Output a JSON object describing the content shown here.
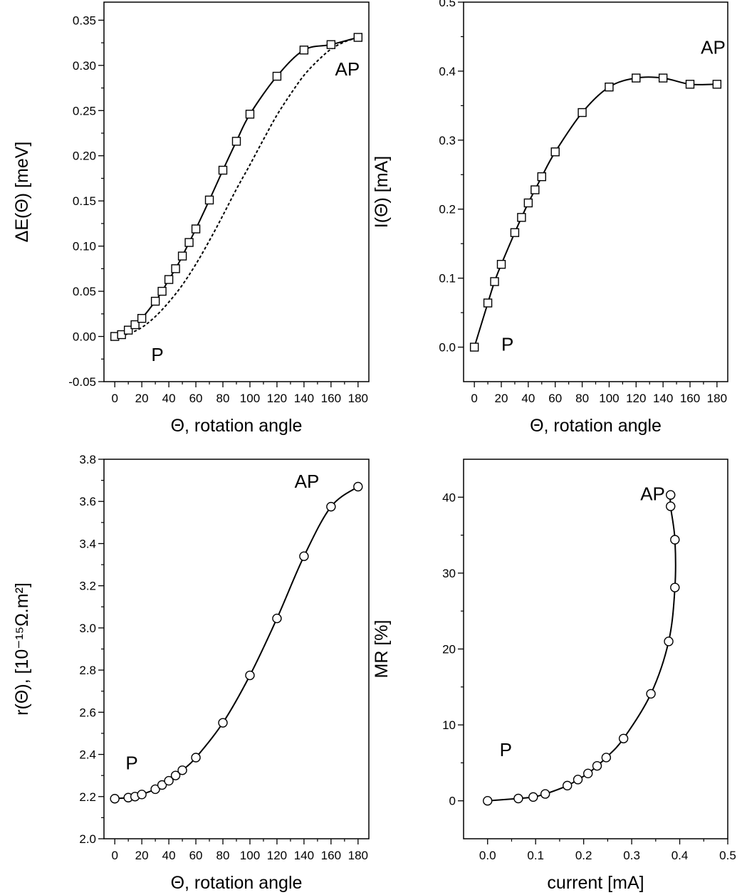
{
  "chart_data": [
    {
      "id": "energy",
      "type": "line",
      "xlabel": "Θ,  rotation angle",
      "ylabel": "ΔE(Θ)  [meV]",
      "xlim": [
        -8,
        188
      ],
      "ylim": [
        -0.05,
        0.37
      ],
      "xticks": [
        0,
        20,
        40,
        60,
        80,
        100,
        120,
        140,
        160,
        180
      ],
      "xtick_labels": [
        "0",
        "20",
        "40",
        "60",
        "80",
        "100",
        "120",
        "140",
        "160",
        "180"
      ],
      "yticks": [
        -0.05,
        0.0,
        0.05,
        0.1,
        0.15,
        0.2,
        0.25,
        0.3,
        0.35
      ],
      "ytick_labels": [
        "-0.05",
        "0.00",
        "0.05",
        "0.10",
        "0.15",
        "0.20",
        "0.25",
        "0.30",
        "0.35"
      ],
      "annotations": [
        {
          "text": "AP",
          "x": 163,
          "y": 0.289
        },
        {
          "text": "P",
          "x": 27,
          "y": -0.027
        }
      ],
      "series": [
        {
          "marker": "square",
          "line": "solid",
          "x": [
            0,
            5,
            10,
            15,
            20,
            30,
            35,
            40,
            45,
            50,
            55,
            60,
            70,
            80,
            90,
            100,
            120,
            140,
            160,
            180
          ],
          "y": [
            0.0,
            0.002,
            0.007,
            0.013,
            0.02,
            0.039,
            0.05,
            0.063,
            0.075,
            0.089,
            0.104,
            0.119,
            0.151,
            0.184,
            0.216,
            0.246,
            0.288,
            0.317,
            0.323,
            0.331
          ]
        },
        {
          "marker": "none",
          "line": "dashed",
          "x": [
            0,
            10,
            20,
            30,
            40,
            50,
            60,
            70,
            80,
            90,
            100,
            110,
            120,
            130,
            140,
            150,
            160,
            170,
            180
          ],
          "y": [
            0.0,
            0.003,
            0.01,
            0.022,
            0.038,
            0.057,
            0.08,
            0.106,
            0.134,
            0.163,
            0.19,
            0.218,
            0.245,
            0.268,
            0.289,
            0.305,
            0.318,
            0.326,
            0.331
          ]
        }
      ]
    },
    {
      "id": "current",
      "type": "line",
      "xlabel": "Θ,  rotation angle",
      "ylabel": "I(Θ)  [mA]",
      "xlim": [
        -8,
        188
      ],
      "ylim": [
        -0.05,
        0.5
      ],
      "xticks": [
        0,
        20,
        40,
        60,
        80,
        100,
        120,
        140,
        160,
        180
      ],
      "xtick_labels": [
        "0",
        "20",
        "40",
        "60",
        "80",
        "100",
        "120",
        "140",
        "160",
        "180"
      ],
      "yticks": [
        0.0,
        0.1,
        0.2,
        0.3,
        0.4,
        0.5
      ],
      "ytick_labels": [
        "0.0",
        "0.1",
        "0.2",
        "0.3",
        "0.4",
        "0.5"
      ],
      "annotations": [
        {
          "text": "AP",
          "x": 168,
          "y": 0.425
        },
        {
          "text": "P",
          "x": 20,
          "y": -0.005
        }
      ],
      "series": [
        {
          "marker": "square",
          "line": "solid",
          "x": [
            0,
            10,
            15,
            20,
            30,
            35,
            40,
            45,
            50,
            60,
            80,
            100,
            120,
            140,
            160,
            180
          ],
          "y": [
            0.0,
            0.064,
            0.095,
            0.12,
            0.166,
            0.188,
            0.209,
            0.228,
            0.247,
            0.283,
            0.34,
            0.377,
            0.39,
            0.39,
            0.381,
            0.381
          ]
        }
      ]
    },
    {
      "id": "resistance",
      "type": "line",
      "xlabel": "Θ,  rotation angle",
      "ylabel": "r(Θ),  [10⁻¹⁵Ω.m²]",
      "xlim": [
        -8,
        188
      ],
      "ylim": [
        2.0,
        3.8
      ],
      "xticks": [
        0,
        20,
        40,
        60,
        80,
        100,
        120,
        140,
        160,
        180
      ],
      "xtick_labels": [
        "0",
        "20",
        "40",
        "60",
        "80",
        "100",
        "120",
        "140",
        "160",
        "180"
      ],
      "yticks": [
        2.0,
        2.2,
        2.4,
        2.6,
        2.8,
        3.0,
        3.2,
        3.4,
        3.6,
        3.8
      ],
      "ytick_labels": [
        "2.0",
        "2.2",
        "2.4",
        "2.6",
        "2.8",
        "3.0",
        "3.2",
        "3.4",
        "3.6",
        "3.8"
      ],
      "annotations": [
        {
          "text": "AP",
          "x": 133,
          "y": 3.665
        },
        {
          "text": "P",
          "x": 8,
          "y": 2.33
        }
      ],
      "series": [
        {
          "marker": "circle",
          "line": "solid",
          "x": [
            0,
            10,
            15,
            20,
            30,
            35,
            40,
            45,
            50,
            60,
            80,
            100,
            120,
            140,
            160,
            180
          ],
          "y": [
            2.19,
            2.195,
            2.2,
            2.21,
            2.235,
            2.255,
            2.275,
            2.3,
            2.325,
            2.385,
            2.55,
            2.775,
            3.045,
            3.34,
            3.575,
            3.67
          ]
        }
      ]
    },
    {
      "id": "mr",
      "type": "line",
      "xlabel": "current  [mA]",
      "ylabel": "MR  [%]",
      "xlim": [
        -0.05,
        0.5
      ],
      "ylim": [
        -5,
        45
      ],
      "xticks": [
        0.0,
        0.1,
        0.2,
        0.3,
        0.4,
        0.5
      ],
      "xtick_labels": [
        "0.0",
        "0.1",
        "0.2",
        "0.3",
        "0.4",
        "0.5"
      ],
      "yticks": [
        0,
        10,
        20,
        30,
        40
      ],
      "ytick_labels": [
        "0",
        "10",
        "20",
        "30",
        "40"
      ],
      "annotations": [
        {
          "text": "AP",
          "x": 0.318,
          "y": 39.6
        },
        {
          "text": "P",
          "x": 0.025,
          "y": 5.9
        }
      ],
      "series": [
        {
          "marker": "circle",
          "line": "solid",
          "x": [
            0.0,
            0.064,
            0.095,
            0.12,
            0.166,
            0.188,
            0.209,
            0.228,
            0.247,
            0.283,
            0.34,
            0.377,
            0.39,
            0.39,
            0.381,
            0.381
          ],
          "y": [
            0.0,
            0.3,
            0.5,
            0.9,
            2.0,
            2.8,
            3.6,
            4.6,
            5.7,
            8.2,
            14.1,
            21.0,
            28.1,
            34.4,
            38.8,
            40.3
          ]
        }
      ]
    }
  ]
}
